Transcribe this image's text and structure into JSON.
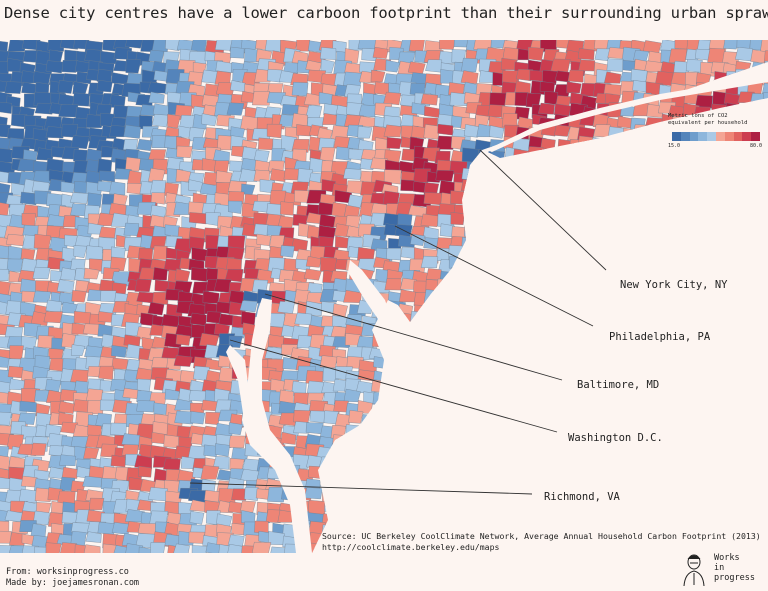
{
  "title": "Dense city centres have a lower carboon footprint than their surrounding urban sprawl",
  "legend": {
    "title": "Metric tons of CO2 equivalent per household",
    "min_label": "15.0",
    "max_label": "80.0",
    "colors": [
      "#3b6aa6",
      "#5484bb",
      "#6e9dcc",
      "#8db6dc",
      "#a9c9e6",
      "#f4a594",
      "#ee8576",
      "#e1625f",
      "#cc3d50",
      "#ad1f42"
    ]
  },
  "cities": [
    {
      "name": "New York City, NY"
    },
    {
      "name": "Philadelphia, PA"
    },
    {
      "name": "Baltimore, MD"
    },
    {
      "name": "Washington D.C."
    },
    {
      "name": "Richmond, VA"
    }
  ],
  "source": {
    "line1": "Source: UC Berkeley CoolClimate Network, Average Annual Household Carbon Footprint (2013)",
    "line2": "http://coolclimate.berkeley.edu/maps"
  },
  "footer": {
    "from": "From: worksinprogress.co",
    "made_by": "Made by: joejamesronan.com"
  },
  "logo": {
    "line1": "Works",
    "line2": "in",
    "line3": "progress"
  }
}
